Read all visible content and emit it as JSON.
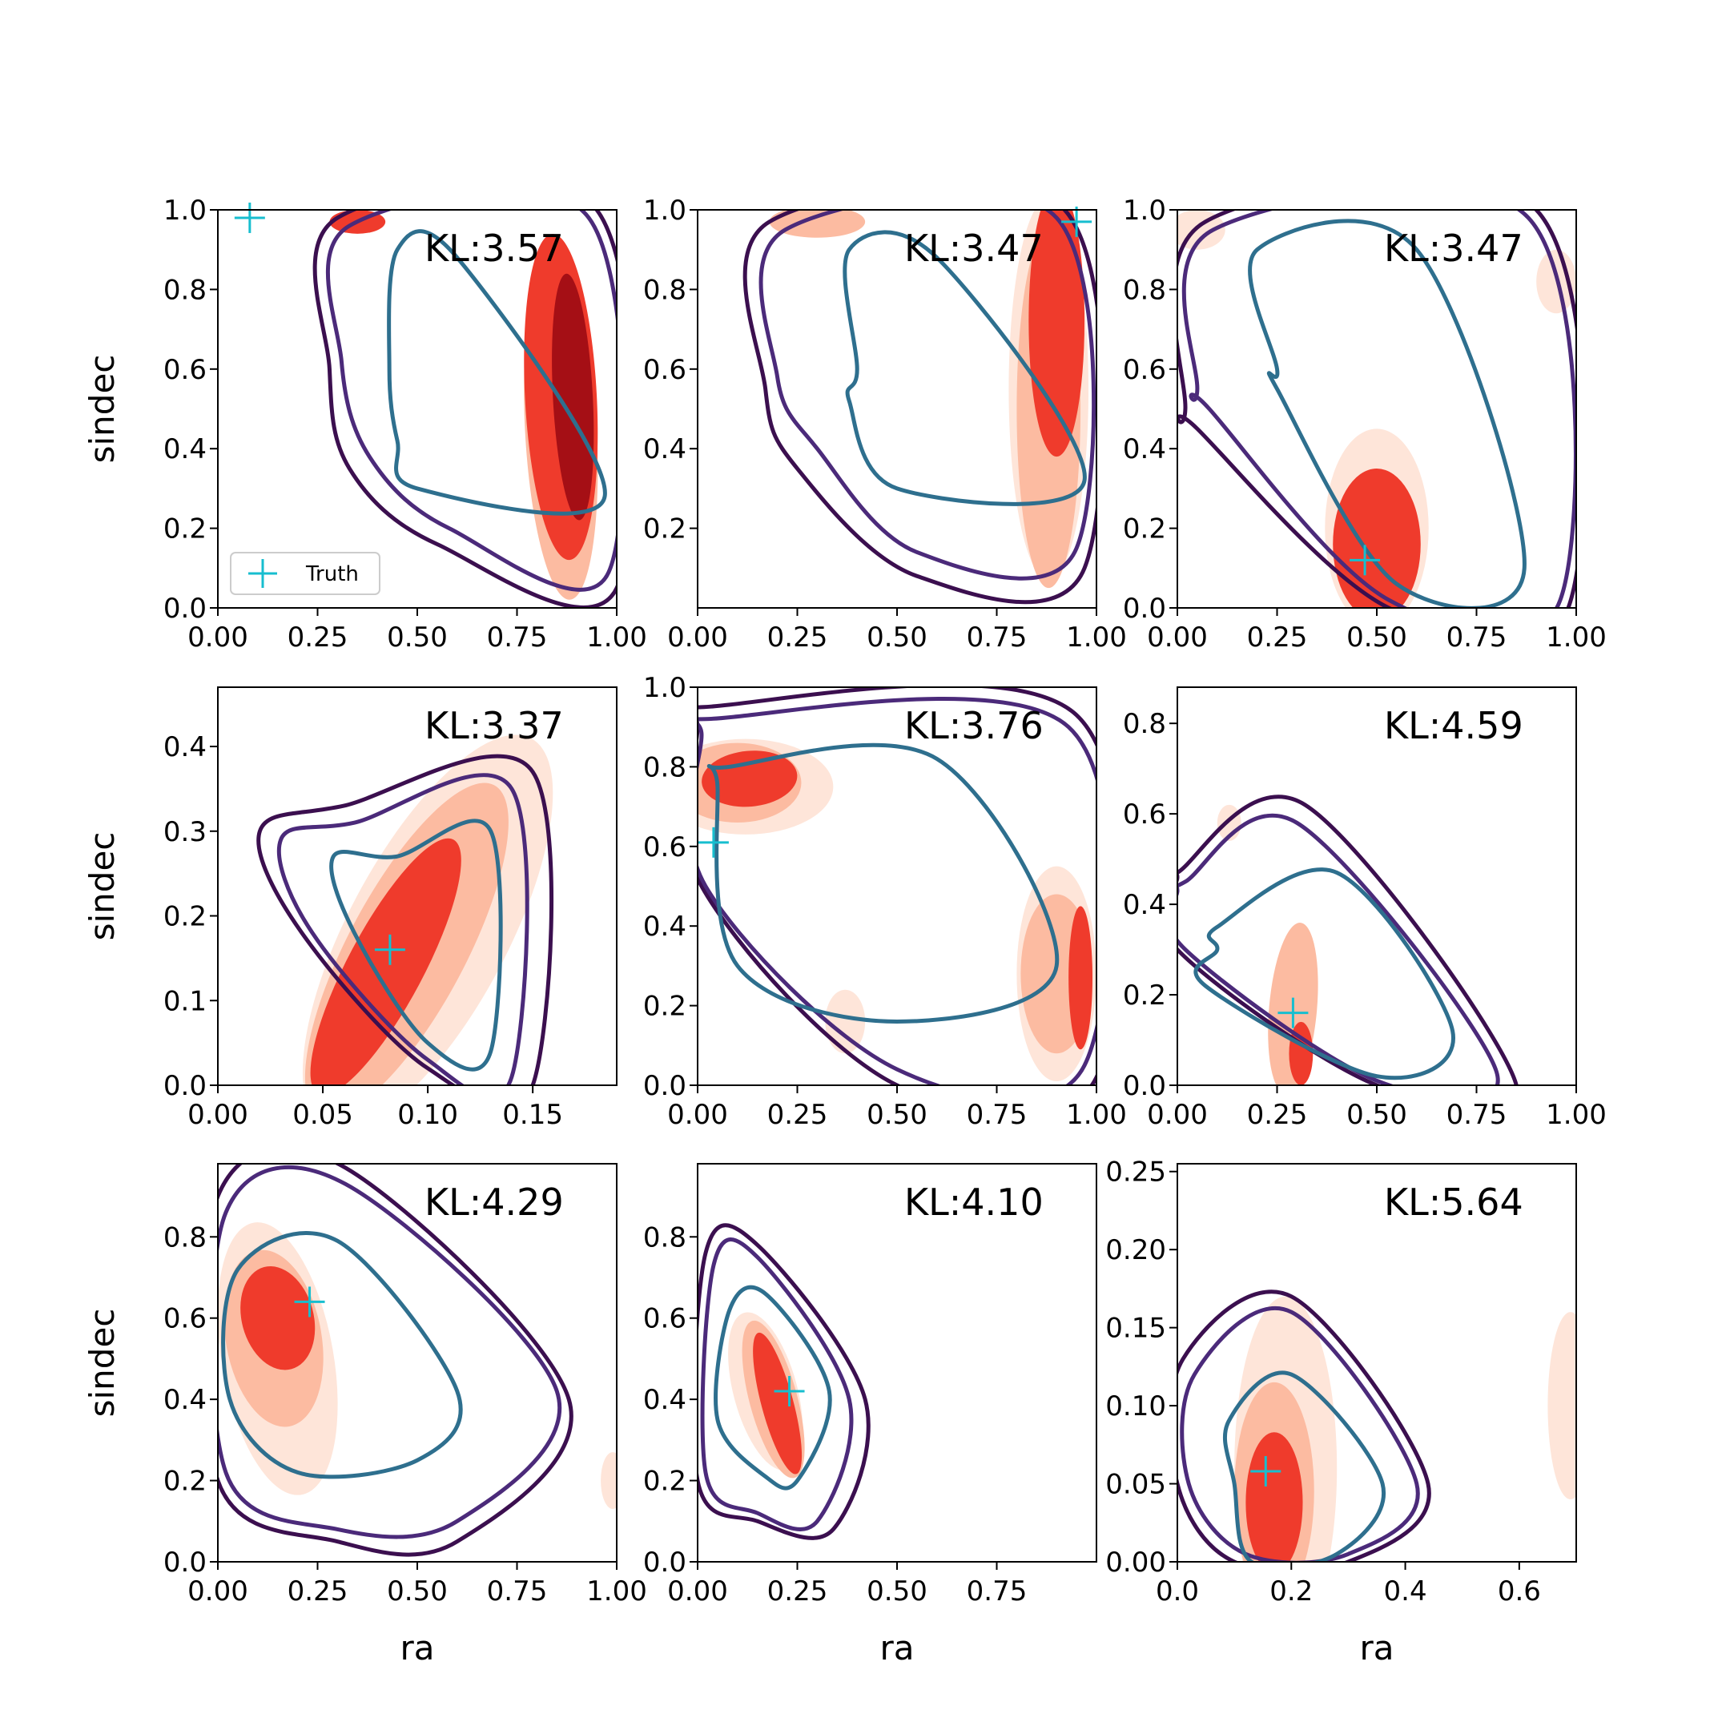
{
  "chart_data": [
    {
      "type": "contour",
      "kl": "KL:3.57",
      "xlim": [
        0,
        1
      ],
      "ylim": [
        0,
        1
      ],
      "xticks": [
        "0.00",
        "0.25",
        "0.50",
        "0.75",
        "1.00"
      ],
      "yticks": [
        "0.0",
        "0.2",
        "0.4",
        "0.6",
        "0.8",
        "1.0"
      ],
      "xlabel": "",
      "ylabel": "sindec",
      "truth": [
        0.08,
        0.98
      ],
      "legend": {
        "label": "Truth",
        "position": "lower-left"
      },
      "posterior_hpd": [
        {
          "level": "light",
          "cx": 0.86,
          "cy": 0.45,
          "rx": 0.09,
          "ry": 0.43,
          "rot": -3
        },
        {
          "level": "mid",
          "cx": 0.86,
          "cy": 0.53,
          "rx": 0.09,
          "ry": 0.41,
          "rot": -3
        },
        {
          "level": "dark",
          "cx": 0.89,
          "cy": 0.53,
          "rx": 0.05,
          "ry": 0.31,
          "rot": -3
        },
        {
          "level": "mid",
          "cx": 0.35,
          "cy": 0.97,
          "rx": 0.07,
          "ry": 0.03,
          "rot": 0
        }
      ],
      "prior_contours": [
        [
          0.3,
          0.98,
          0.95,
          1.0,
          1.0,
          0.05,
          0.55,
          0.16,
          0.33,
          0.35,
          0.28,
          0.6
        ],
        [
          0.33,
          0.96,
          0.93,
          0.98,
          0.98,
          0.09,
          0.58,
          0.2,
          0.38,
          0.38,
          0.31,
          0.62
        ],
        [
          0.45,
          0.9,
          0.6,
          0.88,
          0.97,
          0.28,
          0.5,
          0.3,
          0.45,
          0.42,
          0.43,
          0.6
        ]
      ]
    },
    {
      "type": "contour",
      "kl": "KL:3.47",
      "xlim": [
        0,
        1
      ],
      "ylim": [
        0,
        1
      ],
      "xticks": [
        "0.00",
        "0.25",
        "0.50",
        "0.75",
        "1.00"
      ],
      "yticks": [
        "0.2",
        "0.4",
        "0.6",
        "0.8",
        "1.0"
      ],
      "xlabel": "",
      "ylabel": "",
      "truth": [
        0.95,
        0.97
      ],
      "posterior_hpd": [
        {
          "level": "faint",
          "cx": 0.88,
          "cy": 0.55,
          "rx": 0.1,
          "ry": 0.48,
          "rot": 0
        },
        {
          "level": "light",
          "cx": 0.88,
          "cy": 0.5,
          "rx": 0.08,
          "ry": 0.45,
          "rot": 0
        },
        {
          "level": "mid",
          "cx": 0.9,
          "cy": 0.72,
          "rx": 0.07,
          "ry": 0.34,
          "rot": 0
        },
        {
          "level": "light",
          "cx": 0.3,
          "cy": 0.97,
          "rx": 0.12,
          "ry": 0.04,
          "rot": 0
        }
      ],
      "prior_contours": [
        [
          0.18,
          0.97,
          0.92,
          1.0,
          0.97,
          0.1,
          0.55,
          0.08,
          0.25,
          0.35,
          0.17,
          0.55
        ],
        [
          0.22,
          0.95,
          0.9,
          0.98,
          0.95,
          0.15,
          0.55,
          0.14,
          0.3,
          0.4,
          0.2,
          0.58
        ],
        [
          0.38,
          0.9,
          0.6,
          0.88,
          0.97,
          0.32,
          0.5,
          0.3,
          0.38,
          0.52,
          0.4,
          0.6
        ]
      ]
    },
    {
      "type": "contour",
      "kl": "KL:3.47",
      "xlim": [
        0,
        1
      ],
      "ylim": [
        0,
        1
      ],
      "xticks": [
        "0.00",
        "0.25",
        "0.50",
        "0.75",
        "1.00"
      ],
      "yticks": [
        "0.0",
        "0.2",
        "0.4",
        "0.6",
        "0.8",
        "1.0"
      ],
      "xlabel": "",
      "ylabel": "",
      "truth": [
        0.47,
        0.12
      ],
      "posterior_hpd": [
        {
          "level": "faint",
          "cx": 0.5,
          "cy": 0.2,
          "rx": 0.13,
          "ry": 0.25,
          "rot": 0
        },
        {
          "level": "mid",
          "cx": 0.5,
          "cy": 0.16,
          "rx": 0.11,
          "ry": 0.19,
          "rot": 0
        },
        {
          "level": "faint",
          "cx": 0.95,
          "cy": 0.82,
          "rx": 0.05,
          "ry": 0.08,
          "rot": 0
        },
        {
          "level": "faint",
          "cx": 0.05,
          "cy": 0.95,
          "rx": 0.07,
          "ry": 0.05,
          "rot": 0
        }
      ],
      "prior_contours": [
        [
          0.07,
          0.97,
          0.9,
          1.0,
          0.98,
          0.0,
          0.53,
          0.0,
          0.05,
          0.45,
          0.02,
          0.5
        ],
        [
          0.09,
          0.95,
          0.88,
          0.98,
          0.96,
          0.02,
          0.53,
          0.02,
          0.08,
          0.5,
          0.05,
          0.55
        ],
        [
          0.2,
          0.9,
          0.6,
          0.9,
          0.87,
          0.1,
          0.55,
          0.06,
          0.25,
          0.55,
          0.25,
          0.6
        ]
      ]
    },
    {
      "type": "contour",
      "kl": "KL:3.37",
      "xlim": [
        0,
        0.19
      ],
      "ylim": [
        0,
        0.47
      ],
      "xticks": [
        "0.00",
        "0.05",
        "0.10",
        "0.15"
      ],
      "yticks": [
        "0.0",
        "0.1",
        "0.2",
        "0.3",
        "0.4"
      ],
      "xlabel": "",
      "ylabel": "sindec",
      "truth": [
        0.082,
        0.16
      ],
      "posterior_hpd": [
        {
          "level": "faint",
          "cx": 0.1,
          "cy": 0.18,
          "rx": 0.038,
          "ry": 0.26,
          "rot": 28
        },
        {
          "level": "light",
          "cx": 0.09,
          "cy": 0.16,
          "rx": 0.028,
          "ry": 0.22,
          "rot": 28
        },
        {
          "level": "mid",
          "cx": 0.08,
          "cy": 0.14,
          "rx": 0.018,
          "ry": 0.17,
          "rot": 28
        }
      ],
      "prior_contours": [
        [
          0.06,
          0.33,
          0.15,
          0.37,
          0.15,
          0.0,
          0.1,
          0.02,
          0.04,
          0.18,
          0.02,
          0.3
        ],
        [
          0.065,
          0.31,
          0.14,
          0.35,
          0.14,
          0.01,
          0.1,
          0.03,
          0.045,
          0.18,
          0.03,
          0.29
        ],
        [
          0.085,
          0.27,
          0.13,
          0.3,
          0.13,
          0.04,
          0.1,
          0.05,
          0.065,
          0.18,
          0.055,
          0.27
        ]
      ]
    },
    {
      "type": "contour",
      "kl": "KL:3.76",
      "xlim": [
        0,
        1
      ],
      "ylim": [
        0,
        1
      ],
      "xticks": [
        "0.00",
        "0.25",
        "0.50",
        "0.75",
        "1.00"
      ],
      "yticks": [
        "0.0",
        "0.2",
        "0.4",
        "0.6",
        "0.8",
        "1.0"
      ],
      "xlabel": "",
      "ylabel": "",
      "truth": [
        0.04,
        0.61
      ],
      "posterior_hpd": [
        {
          "level": "faint",
          "cx": 0.12,
          "cy": 0.75,
          "rx": 0.22,
          "ry": 0.12,
          "rot": 0
        },
        {
          "level": "light",
          "cx": 0.1,
          "cy": 0.76,
          "rx": 0.16,
          "ry": 0.1,
          "rot": 0
        },
        {
          "level": "mid",
          "cx": 0.13,
          "cy": 0.77,
          "rx": 0.12,
          "ry": 0.07,
          "rot": -5
        },
        {
          "level": "faint",
          "cx": 0.9,
          "cy": 0.28,
          "rx": 0.1,
          "ry": 0.27,
          "rot": 0
        },
        {
          "level": "light",
          "cx": 0.9,
          "cy": 0.28,
          "rx": 0.09,
          "ry": 0.2,
          "rot": 0
        },
        {
          "level": "mid",
          "cx": 0.96,
          "cy": 0.27,
          "rx": 0.03,
          "ry": 0.18,
          "rot": 0
        },
        {
          "level": "faint",
          "cx": 0.37,
          "cy": 0.16,
          "rx": 0.05,
          "ry": 0.08,
          "rot": 0
        }
      ],
      "prior_contours": [
        [
          0.01,
          0.95,
          0.95,
          0.93,
          1.0,
          0.02,
          0.5,
          0.0,
          0.01,
          0.5,
          0.0,
          0.9
        ],
        [
          0.02,
          0.92,
          0.93,
          0.9,
          0.97,
          0.05,
          0.5,
          0.04,
          0.02,
          0.5,
          0.01,
          0.88
        ],
        [
          0.08,
          0.8,
          0.6,
          0.82,
          0.9,
          0.3,
          0.5,
          0.16,
          0.1,
          0.3,
          0.05,
          0.75
        ]
      ]
    },
    {
      "type": "contour",
      "kl": "KL:4.59",
      "xlim": [
        0,
        1
      ],
      "ylim": [
        0,
        0.88
      ],
      "xticks": [
        "0.00",
        "0.25",
        "0.50",
        "0.75",
        "1.00"
      ],
      "yticks": [
        "0.0",
        "0.2",
        "0.4",
        "0.6",
        "0.8"
      ],
      "xlabel": "",
      "ylabel": "",
      "truth": [
        0.29,
        0.16
      ],
      "posterior_hpd": [
        {
          "level": "light",
          "cx": 0.29,
          "cy": 0.17,
          "rx": 0.06,
          "ry": 0.19,
          "rot": 5
        },
        {
          "level": "mid",
          "cx": 0.31,
          "cy": 0.07,
          "rx": 0.03,
          "ry": 0.07,
          "rot": 0
        },
        {
          "level": "faint",
          "cx": 0.13,
          "cy": 0.58,
          "rx": 0.03,
          "ry": 0.04,
          "rot": 0
        }
      ],
      "prior_contours": [
        [
          0.0,
          0.47,
          0.32,
          0.62,
          0.85,
          0.0,
          0.5,
          0.0,
          0.0,
          0.3,
          0.0,
          0.46
        ],
        [
          0.02,
          0.45,
          0.3,
          0.58,
          0.8,
          0.03,
          0.5,
          0.01,
          0.02,
          0.3,
          0.0,
          0.43
        ],
        [
          0.1,
          0.3,
          0.4,
          0.47,
          0.69,
          0.12,
          0.5,
          0.02,
          0.07,
          0.22,
          0.1,
          0.35
        ]
      ]
    },
    {
      "type": "contour",
      "kl": "KL:4.29",
      "xlim": [
        0,
        1
      ],
      "ylim": [
        0,
        0.98
      ],
      "xticks": [
        "0.00",
        "0.25",
        "0.50",
        "0.75",
        "1.00"
      ],
      "yticks": [
        "0.0",
        "0.2",
        "0.4",
        "0.6",
        "0.8"
      ],
      "xlabel": "ra",
      "ylabel": "sindec",
      "truth": [
        0.23,
        0.64
      ],
      "posterior_hpd": [
        {
          "level": "faint",
          "cx": 0.15,
          "cy": 0.5,
          "rx": 0.14,
          "ry": 0.34,
          "rot": -10
        },
        {
          "level": "light",
          "cx": 0.14,
          "cy": 0.55,
          "rx": 0.12,
          "ry": 0.22,
          "rot": -10
        },
        {
          "level": "mid",
          "cx": 0.15,
          "cy": 0.6,
          "rx": 0.09,
          "ry": 0.13,
          "rot": -15
        },
        {
          "level": "faint",
          "cx": 0.99,
          "cy": 0.2,
          "rx": 0.03,
          "ry": 0.07,
          "rot": 0
        }
      ],
      "prior_contours": [
        [
          0.0,
          0.9,
          0.32,
          0.97,
          0.88,
          0.4,
          0.6,
          0.05,
          0.3,
          0.05,
          0.0,
          0.2
        ],
        [
          0.02,
          0.86,
          0.32,
          0.93,
          0.85,
          0.42,
          0.6,
          0.1,
          0.3,
          0.08,
          0.02,
          0.22
        ],
        [
          0.05,
          0.72,
          0.3,
          0.79,
          0.6,
          0.42,
          0.5,
          0.25,
          0.2,
          0.22,
          0.03,
          0.4
        ]
      ]
    },
    {
      "type": "contour",
      "kl": "KL:4.10",
      "xlim": [
        0,
        1
      ],
      "ylim": [
        0,
        0.98
      ],
      "xticks": [
        "0.00",
        "0.25",
        "0.50",
        "0.75"
      ],
      "yticks": [
        "0.0",
        "0.2",
        "0.4",
        "0.6",
        "0.8"
      ],
      "xlabel": "ra",
      "ylabel": "",
      "truth": [
        0.23,
        0.42
      ],
      "posterior_hpd": [
        {
          "level": "faint",
          "cx": 0.17,
          "cy": 0.42,
          "rx": 0.08,
          "ry": 0.2,
          "rot": -15
        },
        {
          "level": "light",
          "cx": 0.19,
          "cy": 0.4,
          "rx": 0.06,
          "ry": 0.2,
          "rot": -15
        },
        {
          "level": "mid",
          "cx": 0.2,
          "cy": 0.39,
          "rx": 0.04,
          "ry": 0.18,
          "rot": -15
        }
      ],
      "prior_contours": [
        [
          0.02,
          0.76,
          0.15,
          0.78,
          0.42,
          0.4,
          0.34,
          0.08,
          0.15,
          0.1,
          0.0,
          0.2
        ],
        [
          0.04,
          0.73,
          0.15,
          0.75,
          0.38,
          0.4,
          0.3,
          0.1,
          0.15,
          0.12,
          0.02,
          0.22
        ],
        [
          0.08,
          0.62,
          0.17,
          0.66,
          0.33,
          0.42,
          0.25,
          0.2,
          0.17,
          0.21,
          0.05,
          0.35
        ]
      ]
    },
    {
      "type": "contour",
      "kl": "KL:5.64",
      "xlim": [
        0,
        0.7
      ],
      "ylim": [
        0,
        0.255
      ],
      "xticks": [
        "0.0",
        "0.2",
        "0.4",
        "0.6"
      ],
      "yticks": [
        "0.00",
        "0.05",
        "0.10",
        "0.15",
        "0.20",
        "0.25"
      ],
      "xlabel": "ra",
      "ylabel": "",
      "truth": [
        0.155,
        0.058
      ],
      "posterior_hpd": [
        {
          "level": "faint",
          "cx": 0.19,
          "cy": 0.06,
          "rx": 0.09,
          "ry": 0.11,
          "rot": 0
        },
        {
          "level": "light",
          "cx": 0.17,
          "cy": 0.045,
          "rx": 0.07,
          "ry": 0.07,
          "rot": 0
        },
        {
          "level": "mid",
          "cx": 0.17,
          "cy": 0.038,
          "rx": 0.05,
          "ry": 0.045,
          "rot": 0
        },
        {
          "level": "faint",
          "cx": 0.69,
          "cy": 0.1,
          "rx": 0.04,
          "ry": 0.06,
          "rot": 0
        }
      ],
      "prior_contours": [
        [
          0.01,
          0.13,
          0.2,
          0.17,
          0.44,
          0.05,
          0.3,
          0.0,
          0.1,
          0.0,
          0.0,
          0.05
        ],
        [
          0.03,
          0.12,
          0.2,
          0.16,
          0.42,
          0.05,
          0.3,
          0.005,
          0.12,
          0.005,
          0.02,
          0.05
        ],
        [
          0.09,
          0.09,
          0.2,
          0.12,
          0.36,
          0.05,
          0.28,
          0.005,
          0.13,
          0.0,
          0.1,
          0.05
        ]
      ]
    }
  ],
  "colors": {
    "faint": "#fee5d9",
    "light": "#fcbba1",
    "salmon": "#fc9272",
    "mid": "#ef3b2c",
    "dark": "#a50f15",
    "prior": [
      "#3b0f4f",
      "#4b2a7a",
      "#2e6f8e"
    ],
    "truth": "#17becf"
  }
}
